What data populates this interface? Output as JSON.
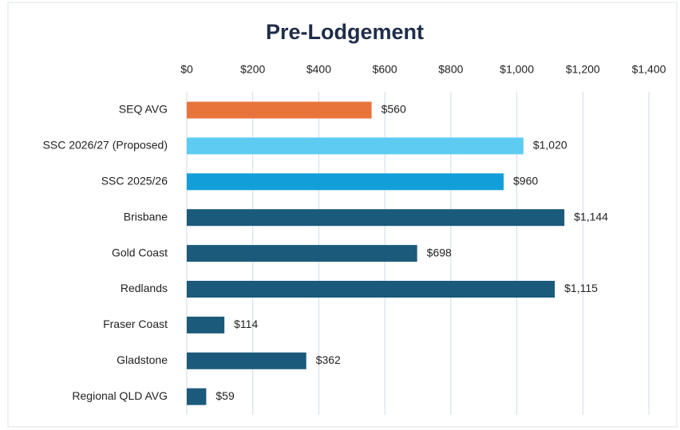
{
  "chart_data": {
    "type": "hbar",
    "title": "Pre-Lodgement",
    "categories": [
      "SEQ AVG",
      "SSC 2026/27 (Proposed)",
      "SSC 2025/26",
      "Brisbane",
      "Gold Coast",
      "Redlands",
      "Fraser Coast",
      "Gladstone",
      "Regional QLD AVG"
    ],
    "values": [
      560,
      1020,
      960,
      1144,
      698,
      1115,
      114,
      362,
      59
    ],
    "value_labels": [
      "$560",
      "$1,020",
      "$960",
      "$1,144",
      "$698",
      "$1,115",
      "$114",
      "$362",
      "$59"
    ],
    "colors": [
      "#e8743b",
      "#5ecbf2",
      "#129fd9",
      "#1b5a7b",
      "#1b5a7b",
      "#1b5a7b",
      "#1b5a7b",
      "#1b5a7b",
      "#1b5a7b"
    ],
    "xlim": [
      0,
      1400
    ],
    "xticks": [
      {
        "value": 0,
        "label": "$0"
      },
      {
        "value": 200,
        "label": "$200"
      },
      {
        "value": 400,
        "label": "$400"
      },
      {
        "value": 600,
        "label": "$600"
      },
      {
        "value": 800,
        "label": "$800"
      },
      {
        "value": 1000,
        "label": "$1,000"
      },
      {
        "value": 1200,
        "label": "$1,200"
      },
      {
        "value": 1400,
        "label": "$1,400"
      }
    ],
    "grid": true
  }
}
